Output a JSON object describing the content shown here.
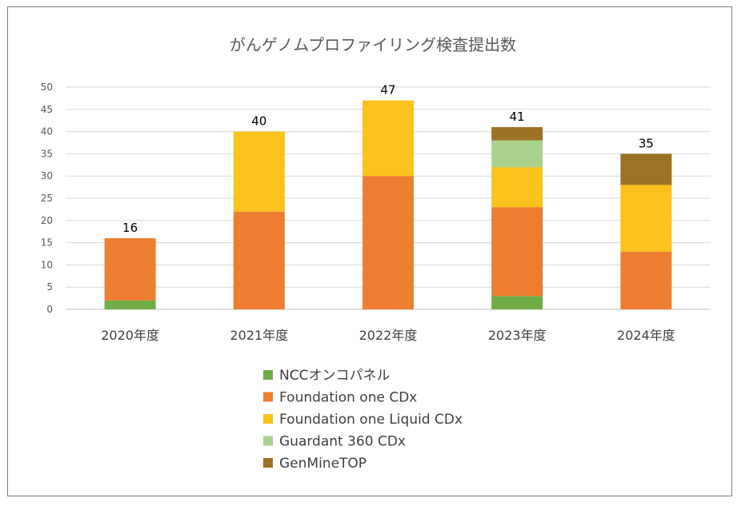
{
  "chart_data": {
    "type": "bar",
    "stacked": true,
    "title": "がんゲノムプロファイリング検査提出数",
    "categories": [
      "2020年度",
      "2021年度",
      "2022年度",
      "2023年度",
      "2024年度"
    ],
    "series": [
      {
        "name": "NCCオンコパネル",
        "color": "#70ad47",
        "values": [
          2,
          0,
          0,
          3,
          0
        ]
      },
      {
        "name": "Foundation one CDx",
        "color": "#ed7d31",
        "values": [
          14,
          22,
          30,
          20,
          13
        ]
      },
      {
        "name": "Foundation one Liquid CDx",
        "color": "#fbc11c",
        "values": [
          0,
          18,
          17,
          9,
          15
        ]
      },
      {
        "name": "Guardant 360 CDx",
        "color": "#a9d18e",
        "values": [
          0,
          0,
          0,
          6,
          0
        ]
      },
      {
        "name": "GenMineTOP",
        "color": "#9c7324",
        "values": [
          0,
          0,
          0,
          3,
          7
        ]
      }
    ],
    "totals": [
      16,
      40,
      47,
      41,
      35
    ],
    "ylim": [
      0,
      50
    ],
    "yticks": [
      0,
      5,
      10,
      15,
      20,
      25,
      30,
      35,
      40,
      45,
      50
    ],
    "grid": true,
    "legend_position": "bottom",
    "xlabel": "",
    "ylabel": ""
  }
}
